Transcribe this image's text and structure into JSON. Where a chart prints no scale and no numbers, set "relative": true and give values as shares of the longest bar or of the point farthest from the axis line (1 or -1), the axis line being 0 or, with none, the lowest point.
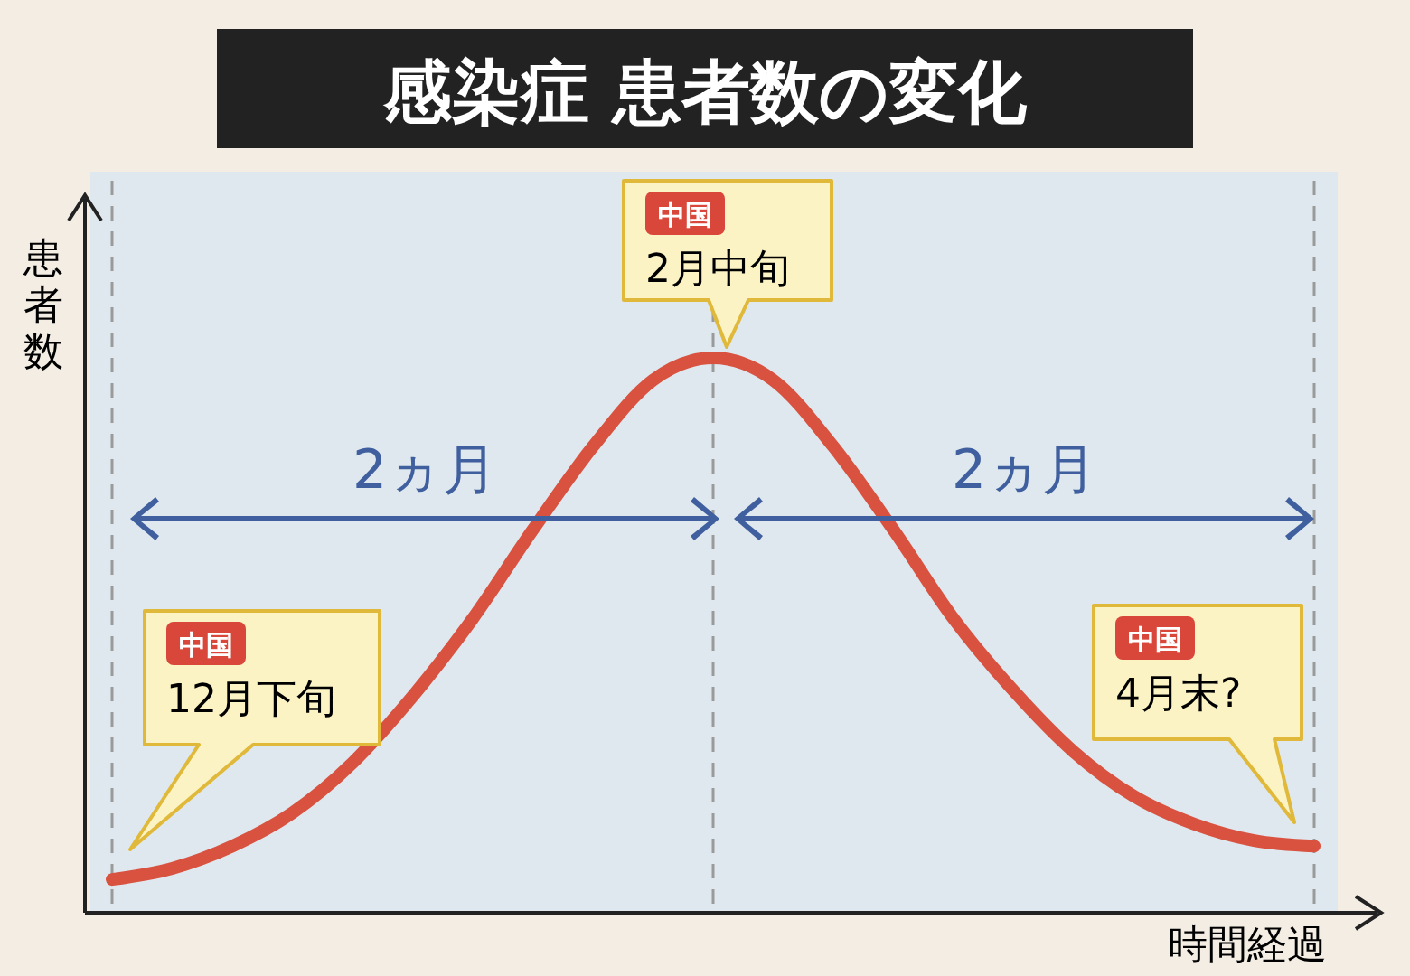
{
  "chart_data": {
    "type": "line",
    "title": "感染症 患者数の変化",
    "ylabel": "患者数",
    "xlabel": "時間経過",
    "relative": true,
    "categories": [
      null,
      null,
      null,
      null,
      null,
      null,
      null,
      null,
      null,
      null,
      null,
      null,
      null,
      null,
      null,
      null,
      null,
      null,
      null,
      null,
      null
    ],
    "series": [
      {
        "color": "#d9523f",
        "values": [
          0.06,
          0.08,
          0.12,
          0.18,
          0.27,
          0.39,
          0.53,
          0.69,
          0.84,
          0.96,
          1.0,
          0.96,
          0.84,
          0.69,
          0.53,
          0.4,
          0.29,
          0.21,
          0.16,
          0.13,
          0.12
        ]
      }
    ],
    "annotations": [
      "2ヵ月",
      "2ヵ月",
      "中国",
      "12月下旬",
      "中国",
      "2月中旬",
      "中国",
      "4月末?"
    ],
    "grid": "x",
    "marker": "none",
    "line_style": "solid"
  }
}
